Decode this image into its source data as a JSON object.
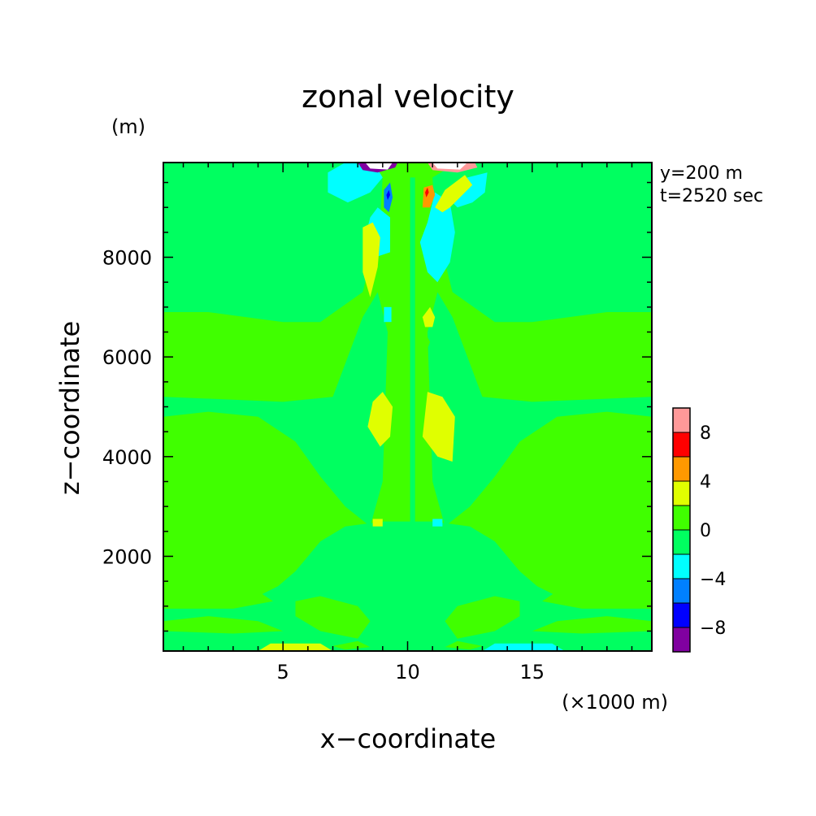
{
  "chart_data": {
    "type": "heatmap",
    "title": "zonal velocity",
    "xlabel": "x−coordinate",
    "ylabel": "z−coordinate",
    "x_unit": "(×1000 m)",
    "y_unit": "(m)",
    "annotations": [
      "y=200 m",
      "t=2520 sec"
    ],
    "xlim": [
      0.2,
      19.8
    ],
    "ylim": [
      100,
      9900
    ],
    "x_ticks": [
      5,
      10,
      15
    ],
    "x_tick_labels": [
      "5",
      "10",
      "15"
    ],
    "y_ticks": [
      2000,
      4000,
      6000,
      8000
    ],
    "y_tick_labels": [
      "2000",
      "4000",
      "6000",
      "8000"
    ],
    "colorbar": {
      "levels": [
        -10,
        -8,
        -6,
        -4,
        -2,
        0,
        2,
        4,
        6,
        8,
        10
      ],
      "tick_values": [
        -8,
        -4,
        0,
        4,
        8
      ],
      "tick_labels": [
        "−8",
        "−4",
        "0",
        "4",
        "8"
      ],
      "colors": [
        "#8000a0",
        "#0000ff",
        "#0080ff",
        "#00ffff",
        "#00ff60",
        "#40ff00",
        "#e0ff00",
        "#ff9900",
        "#ff0000",
        "#ff9999"
      ]
    },
    "background_value": 1,
    "regions": [
      {
        "value": -1,
        "points": [
          [
            0.2,
            6900
          ],
          [
            2,
            6900
          ],
          [
            5,
            6700
          ],
          [
            6.5,
            6700
          ],
          [
            8.2,
            7300
          ],
          [
            8.9,
            8700
          ],
          [
            9,
            9600
          ],
          [
            8,
            9900
          ],
          [
            0.2,
            9900
          ]
        ]
      },
      {
        "value": -1,
        "points": [
          [
            11,
            9600
          ],
          [
            11.1,
            8700
          ],
          [
            11.8,
            7300
          ],
          [
            13.5,
            6700
          ],
          [
            15,
            6700
          ],
          [
            18,
            6900
          ],
          [
            19.8,
            6900
          ],
          [
            19.8,
            9900
          ],
          [
            12,
            9900
          ]
        ]
      },
      {
        "value": -1,
        "points": [
          [
            0.2,
            4800
          ],
          [
            2,
            4900
          ],
          [
            4,
            4800
          ],
          [
            5.5,
            4300
          ],
          [
            6.5,
            3600
          ],
          [
            7.5,
            3000
          ],
          [
            8.5,
            2600
          ],
          [
            9,
            3500
          ],
          [
            9.2,
            6500
          ],
          [
            8.8,
            7300
          ],
          [
            8.2,
            6800
          ],
          [
            7,
            5200
          ],
          [
            5,
            5100
          ],
          [
            0.2,
            5200
          ]
        ]
      },
      {
        "value": -1,
        "points": [
          [
            19.8,
            4800
          ],
          [
            18,
            4900
          ],
          [
            16,
            4800
          ],
          [
            14.5,
            4300
          ],
          [
            13.5,
            3600
          ],
          [
            12.5,
            3000
          ],
          [
            11.5,
            2600
          ],
          [
            11,
            3500
          ],
          [
            10.8,
            6500
          ],
          [
            11.2,
            7300
          ],
          [
            11.8,
            6800
          ],
          [
            13,
            5200
          ],
          [
            15,
            5100
          ],
          [
            19.8,
            5200
          ]
        ]
      },
      {
        "value": -1,
        "points": [
          [
            0.2,
            1000
          ],
          [
            2,
            1100
          ],
          [
            4,
            1200
          ],
          [
            4.8,
            1400
          ],
          [
            5.5,
            1700
          ],
          [
            6.5,
            2300
          ],
          [
            7.5,
            2600
          ],
          [
            9,
            2700
          ],
          [
            10.2,
            2700
          ],
          [
            10.2,
            100
          ],
          [
            0.2,
            100
          ]
        ]
      },
      {
        "value": -1,
        "points": [
          [
            19.8,
            1000
          ],
          [
            18,
            1100
          ],
          [
            16,
            1200
          ],
          [
            15.2,
            1400
          ],
          [
            14.5,
            1700
          ],
          [
            13.5,
            2300
          ],
          [
            12.5,
            2600
          ],
          [
            11,
            2700
          ],
          [
            10.2,
            2700
          ],
          [
            10.2,
            100
          ],
          [
            19.8,
            100
          ]
        ]
      },
      {
        "value": 1,
        "points": [
          [
            0.2,
            1100
          ],
          [
            2,
            1200
          ],
          [
            4,
            1300
          ],
          [
            4.6,
            1100
          ],
          [
            3,
            950
          ],
          [
            0.2,
            950
          ]
        ]
      },
      {
        "value": 1,
        "points": [
          [
            0.2,
            2000
          ],
          [
            1.5,
            2050
          ],
          [
            3.5,
            1900
          ],
          [
            4.3,
            1650
          ],
          [
            3.5,
            1450
          ],
          [
            1.5,
            1400
          ],
          [
            0.2,
            1450
          ]
        ]
      },
      {
        "value": 1,
        "points": [
          [
            19.8,
            1100
          ],
          [
            18,
            1200
          ],
          [
            16,
            1300
          ],
          [
            15.4,
            1100
          ],
          [
            17,
            950
          ],
          [
            19.8,
            950
          ]
        ]
      },
      {
        "value": 1,
        "points": [
          [
            19.8,
            2000
          ],
          [
            18.5,
            2050
          ],
          [
            16.5,
            1900
          ],
          [
            15.7,
            1650
          ],
          [
            16.5,
            1450
          ],
          [
            18.5,
            1400
          ],
          [
            19.8,
            1450
          ]
        ]
      },
      {
        "value": 1,
        "points": [
          [
            0.2,
            700
          ],
          [
            2,
            800
          ],
          [
            4,
            700
          ],
          [
            5,
            500
          ],
          [
            3,
            450
          ],
          [
            0.2,
            500
          ]
        ]
      },
      {
        "value": 1,
        "points": [
          [
            19.8,
            700
          ],
          [
            18,
            800
          ],
          [
            16,
            700
          ],
          [
            15,
            500
          ],
          [
            17,
            450
          ],
          [
            19.8,
            500
          ]
        ]
      },
      {
        "value": 1,
        "points": [
          [
            5.5,
            1100
          ],
          [
            6.5,
            1200
          ],
          [
            8,
            1000
          ],
          [
            8.5,
            700
          ],
          [
            8,
            350
          ],
          [
            6.5,
            500
          ],
          [
            5.5,
            800
          ]
        ]
      },
      {
        "value": 1,
        "points": [
          [
            14.5,
            1100
          ],
          [
            13.5,
            1200
          ],
          [
            12,
            1000
          ],
          [
            11.5,
            700
          ],
          [
            12,
            350
          ],
          [
            13.5,
            500
          ],
          [
            14.5,
            800
          ]
        ]
      },
      {
        "value": 1,
        "points": [
          [
            7,
            200
          ],
          [
            8,
            300
          ],
          [
            8.5,
            180
          ],
          [
            7.5,
            130
          ]
        ]
      },
      {
        "value": 1,
        "points": [
          [
            13,
            200
          ],
          [
            12,
            300
          ],
          [
            11.5,
            180
          ],
          [
            12.5,
            130
          ]
        ]
      },
      {
        "value": 1,
        "points": [
          [
            9.2,
            6400
          ],
          [
            9.5,
            6600
          ],
          [
            9.8,
            6300
          ],
          [
            9.6,
            5900
          ],
          [
            9.2,
            6000
          ]
        ]
      },
      {
        "value": 1,
        "points": [
          [
            10.2,
            5900
          ],
          [
            10.6,
            5900
          ],
          [
            10.9,
            6300
          ],
          [
            10.6,
            6600
          ],
          [
            10.3,
            6400
          ]
        ]
      },
      {
        "value": -1,
        "points": [
          [
            10.1,
            100
          ],
          [
            10.3,
            100
          ],
          [
            10.3,
            9600
          ],
          [
            10.1,
            9600
          ]
        ]
      },
      {
        "value": -3,
        "points": [
          [
            6.8,
            9300
          ],
          [
            7.6,
            9100
          ],
          [
            8.5,
            9300
          ],
          [
            9,
            9600
          ],
          [
            8.7,
            9850
          ],
          [
            7.5,
            9900
          ],
          [
            6.8,
            9700
          ]
        ]
      },
      {
        "value": -3,
        "points": [
          [
            8.3,
            8400
          ],
          [
            8.7,
            8000
          ],
          [
            9.3,
            8100
          ],
          [
            9.3,
            8800
          ],
          [
            8.8,
            9000
          ],
          [
            8.5,
            8800
          ]
        ]
      },
      {
        "value": -3,
        "points": [
          [
            11.8,
            9300
          ],
          [
            12.4,
            9600
          ],
          [
            13.2,
            9700
          ],
          [
            13.1,
            9300
          ],
          [
            12.6,
            9100
          ],
          [
            12,
            9000
          ],
          [
            11.6,
            9200
          ]
        ]
      },
      {
        "value": -3,
        "points": [
          [
            10.5,
            8300
          ],
          [
            10.8,
            8700
          ],
          [
            11.1,
            9300
          ],
          [
            11.7,
            9100
          ],
          [
            11.9,
            8500
          ],
          [
            11.7,
            7900
          ],
          [
            11.2,
            7500
          ],
          [
            10.8,
            7700
          ]
        ]
      },
      {
        "value": 3,
        "points": [
          [
            8.9,
            4200
          ],
          [
            9.3,
            4400
          ],
          [
            9.4,
            5000
          ],
          [
            9,
            5300
          ],
          [
            8.6,
            5100
          ],
          [
            8.4,
            4600
          ]
        ]
      },
      {
        "value": 3,
        "points": [
          [
            10.6,
            4400
          ],
          [
            11.2,
            4000
          ],
          [
            11.8,
            3900
          ],
          [
            11.9,
            4800
          ],
          [
            11.4,
            5200
          ],
          [
            10.8,
            5300
          ]
        ]
      },
      {
        "value": 3,
        "points": [
          [
            8.2,
            8600
          ],
          [
            8.6,
            8700
          ],
          [
            8.9,
            8400
          ],
          [
            8.8,
            7800
          ],
          [
            8.5,
            7200
          ],
          [
            8.2,
            7700
          ]
        ]
      },
      {
        "value": 3,
        "points": [
          [
            11.1,
            9000
          ],
          [
            11.5,
            9350
          ],
          [
            12.3,
            9650
          ],
          [
            12.6,
            9450
          ],
          [
            11.7,
            9000
          ],
          [
            11.4,
            8900
          ]
        ]
      },
      {
        "value": 3,
        "points": [
          [
            10.6,
            6800
          ],
          [
            10.9,
            7000
          ],
          [
            11.1,
            6800
          ],
          [
            11,
            6600
          ],
          [
            10.7,
            6600
          ]
        ]
      },
      {
        "value": -3,
        "points": [
          [
            9.05,
            6700
          ],
          [
            9.35,
            6700
          ],
          [
            9.35,
            7000
          ],
          [
            9.05,
            7000
          ]
        ]
      },
      {
        "value": 3,
        "points": [
          [
            4,
            100
          ],
          [
            7,
            100
          ],
          [
            6.5,
            250
          ],
          [
            4.5,
            250
          ]
        ]
      },
      {
        "value": -3,
        "points": [
          [
            13,
            100
          ],
          [
            16.3,
            100
          ],
          [
            15.8,
            250
          ],
          [
            13.5,
            250
          ]
        ]
      },
      {
        "value": 3,
        "points": [
          [
            8.6,
            2600
          ],
          [
            9,
            2600
          ],
          [
            9,
            2750
          ],
          [
            8.6,
            2750
          ]
        ]
      },
      {
        "value": -3,
        "points": [
          [
            11,
            2600
          ],
          [
            11.4,
            2600
          ],
          [
            11.4,
            2750
          ],
          [
            11,
            2750
          ]
        ]
      },
      {
        "value": -5,
        "points": [
          [
            9.05,
            9000
          ],
          [
            9.25,
            8900
          ],
          [
            9.4,
            9200
          ],
          [
            9.3,
            9500
          ],
          [
            9.05,
            9350
          ]
        ]
      },
      {
        "value": 5,
        "points": [
          [
            10.6,
            9000
          ],
          [
            10.9,
            9000
          ],
          [
            11.1,
            9250
          ],
          [
            11,
            9450
          ],
          [
            10.65,
            9400
          ]
        ]
      },
      {
        "value": -7,
        "points": [
          [
            9.2,
            9150
          ],
          [
            9.3,
            9250
          ],
          [
            9.25,
            9350
          ],
          [
            9.15,
            9250
          ]
        ]
      },
      {
        "value": 7,
        "points": [
          [
            10.75,
            9200
          ],
          [
            10.85,
            9300
          ],
          [
            10.8,
            9400
          ],
          [
            10.7,
            9300
          ]
        ]
      },
      {
        "value": -9,
        "points": [
          [
            8.0,
            9900
          ],
          [
            8.2,
            9750
          ],
          [
            8.8,
            9700
          ],
          [
            9.5,
            9800
          ],
          [
            9.6,
            9900
          ]
        ]
      },
      {
        "value": 9,
        "points": [
          [
            10.8,
            9900
          ],
          [
            11.0,
            9750
          ],
          [
            12.0,
            9700
          ],
          [
            12.8,
            9800
          ],
          [
            12.7,
            9900
          ]
        ]
      }
    ],
    "white_cores": [
      {
        "points": [
          [
            8.3,
            9900
          ],
          [
            8.5,
            9780
          ],
          [
            9.2,
            9760
          ],
          [
            9.4,
            9900
          ]
        ]
      },
      {
        "points": [
          [
            11.0,
            9900
          ],
          [
            11.2,
            9780
          ],
          [
            12.1,
            9760
          ],
          [
            12.4,
            9900
          ]
        ]
      }
    ]
  }
}
